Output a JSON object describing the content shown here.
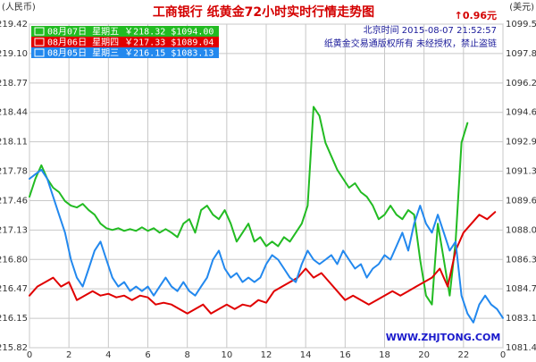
{
  "chart_data": {
    "type": "line",
    "title": "工商银行  纸黄金72小时实时行情走势图",
    "change_text": "↑0.96元",
    "left_unit": "(人民币)",
    "right_unit": "(美元)",
    "timestamp": "北京时间  2015-08-07  21:52:57",
    "copyright": "纸黄金交易通版权所有 未经授权，禁止盗链",
    "watermark": "WWW.ZHJTONG.COM",
    "x_ticks": [
      "0",
      "2",
      "4",
      "6",
      "8",
      "10",
      "12",
      "14",
      "16",
      "18",
      "20",
      "22",
      "0"
    ],
    "y_left_ticks": [
      "219.42",
      "219.10",
      "218.77",
      "218.44",
      "218.11",
      "217.78",
      "217.46",
      "217.13",
      "216.80",
      "216.47",
      "216.15",
      "215.82"
    ],
    "y_right_ticks": [
      "1099.53",
      "1097.89",
      "1096.25",
      "1094.61",
      "1092.96",
      "1091.32",
      "1089.68",
      "1088.03",
      "1086.39",
      "1084.75",
      "1083.10",
      "1081.46"
    ],
    "ylim": [
      215.82,
      219.42
    ],
    "xlim": [
      0,
      24
    ],
    "grid": true,
    "legend_placement": "top-left",
    "series": [
      {
        "name": "08月07日 星期五 ￥218.32 $1094.00",
        "color": "#22bb22",
        "points": [
          [
            0,
            217.5
          ],
          [
            0.3,
            217.7
          ],
          [
            0.6,
            217.85
          ],
          [
            0.9,
            217.7
          ],
          [
            1.2,
            217.6
          ],
          [
            1.5,
            217.55
          ],
          [
            1.8,
            217.45
          ],
          [
            2.1,
            217.4
          ],
          [
            2.4,
            217.38
          ],
          [
            2.7,
            217.42
          ],
          [
            3.0,
            217.35
          ],
          [
            3.3,
            217.3
          ],
          [
            3.6,
            217.2
          ],
          [
            3.9,
            217.15
          ],
          [
            4.2,
            217.13
          ],
          [
            4.5,
            217.15
          ],
          [
            4.8,
            217.12
          ],
          [
            5.1,
            217.14
          ],
          [
            5.4,
            217.12
          ],
          [
            5.7,
            217.16
          ],
          [
            6.0,
            217.12
          ],
          [
            6.3,
            217.15
          ],
          [
            6.6,
            217.1
          ],
          [
            6.9,
            217.14
          ],
          [
            7.2,
            217.1
          ],
          [
            7.5,
            217.05
          ],
          [
            7.8,
            217.2
          ],
          [
            8.1,
            217.25
          ],
          [
            8.4,
            217.1
          ],
          [
            8.7,
            217.35
          ],
          [
            9.0,
            217.4
          ],
          [
            9.3,
            217.3
          ],
          [
            9.6,
            217.25
          ],
          [
            9.9,
            217.35
          ],
          [
            10.2,
            217.2
          ],
          [
            10.5,
            217.0
          ],
          [
            10.8,
            217.1
          ],
          [
            11.1,
            217.2
          ],
          [
            11.4,
            217.0
          ],
          [
            11.7,
            217.05
          ],
          [
            12.0,
            216.95
          ],
          [
            12.3,
            217.0
          ],
          [
            12.6,
            216.95
          ],
          [
            12.9,
            217.05
          ],
          [
            13.2,
            217.0
          ],
          [
            13.5,
            217.1
          ],
          [
            13.8,
            217.2
          ],
          [
            14.1,
            217.4
          ],
          [
            14.4,
            218.5
          ],
          [
            14.7,
            218.4
          ],
          [
            15.0,
            218.1
          ],
          [
            15.3,
            217.95
          ],
          [
            15.6,
            217.8
          ],
          [
            15.9,
            217.7
          ],
          [
            16.2,
            217.6
          ],
          [
            16.5,
            217.65
          ],
          [
            16.8,
            217.55
          ],
          [
            17.1,
            217.5
          ],
          [
            17.4,
            217.4
          ],
          [
            17.7,
            217.25
          ],
          [
            18.0,
            217.3
          ],
          [
            18.3,
            217.4
          ],
          [
            18.6,
            217.3
          ],
          [
            18.9,
            217.25
          ],
          [
            19.2,
            217.35
          ],
          [
            19.5,
            217.3
          ],
          [
            19.8,
            216.8
          ],
          [
            20.1,
            216.4
          ],
          [
            20.4,
            216.3
          ],
          [
            20.7,
            217.2
          ],
          [
            21.0,
            216.8
          ],
          [
            21.3,
            216.4
          ],
          [
            21.6,
            217.0
          ],
          [
            21.9,
            218.1
          ],
          [
            22.2,
            218.32
          ]
        ]
      },
      {
        "name": "08月06日 星期四 ￥217.33 $1089.04",
        "color": "#e00000",
        "points": [
          [
            0,
            216.4
          ],
          [
            0.4,
            216.5
          ],
          [
            0.8,
            216.55
          ],
          [
            1.2,
            216.6
          ],
          [
            1.6,
            216.5
          ],
          [
            2.0,
            216.55
          ],
          [
            2.4,
            216.35
          ],
          [
            2.8,
            216.4
          ],
          [
            3.2,
            216.45
          ],
          [
            3.6,
            216.4
          ],
          [
            4.0,
            216.42
          ],
          [
            4.4,
            216.38
          ],
          [
            4.8,
            216.4
          ],
          [
            5.2,
            216.35
          ],
          [
            5.6,
            216.4
          ],
          [
            6.0,
            216.38
          ],
          [
            6.4,
            216.3
          ],
          [
            6.8,
            216.32
          ],
          [
            7.2,
            216.3
          ],
          [
            7.6,
            216.25
          ],
          [
            8.0,
            216.2
          ],
          [
            8.4,
            216.25
          ],
          [
            8.8,
            216.3
          ],
          [
            9.2,
            216.2
          ],
          [
            9.6,
            216.25
          ],
          [
            10.0,
            216.3
          ],
          [
            10.4,
            216.25
          ],
          [
            10.8,
            216.3
          ],
          [
            11.2,
            216.28
          ],
          [
            11.6,
            216.35
          ],
          [
            12.0,
            216.32
          ],
          [
            12.4,
            216.45
          ],
          [
            12.8,
            216.5
          ],
          [
            13.2,
            216.55
          ],
          [
            13.6,
            216.6
          ],
          [
            14.0,
            216.7
          ],
          [
            14.4,
            216.6
          ],
          [
            14.8,
            216.65
          ],
          [
            15.2,
            216.55
          ],
          [
            15.6,
            216.45
          ],
          [
            16.0,
            216.35
          ],
          [
            16.4,
            216.4
          ],
          [
            16.8,
            216.35
          ],
          [
            17.2,
            216.3
          ],
          [
            17.6,
            216.35
          ],
          [
            18.0,
            216.4
          ],
          [
            18.4,
            216.45
          ],
          [
            18.8,
            216.4
          ],
          [
            19.2,
            216.45
          ],
          [
            19.6,
            216.5
          ],
          [
            20.0,
            216.55
          ],
          [
            20.4,
            216.6
          ],
          [
            20.8,
            216.7
          ],
          [
            21.2,
            216.5
          ],
          [
            21.6,
            216.9
          ],
          [
            22.0,
            217.1
          ],
          [
            22.4,
            217.2
          ],
          [
            22.8,
            217.3
          ],
          [
            23.2,
            217.25
          ],
          [
            23.6,
            217.33
          ]
        ]
      },
      {
        "name": "08月05日 星期三 ￥216.15 $1083.13",
        "color": "#2288ee",
        "points": [
          [
            0,
            217.7
          ],
          [
            0.3,
            217.75
          ],
          [
            0.6,
            217.8
          ],
          [
            0.9,
            217.7
          ],
          [
            1.2,
            217.5
          ],
          [
            1.5,
            217.3
          ],
          [
            1.8,
            217.1
          ],
          [
            2.1,
            216.8
          ],
          [
            2.4,
            216.6
          ],
          [
            2.7,
            216.5
          ],
          [
            3.0,
            216.7
          ],
          [
            3.3,
            216.9
          ],
          [
            3.6,
            217.0
          ],
          [
            3.9,
            216.8
          ],
          [
            4.2,
            216.6
          ],
          [
            4.5,
            216.5
          ],
          [
            4.8,
            216.55
          ],
          [
            5.1,
            216.45
          ],
          [
            5.4,
            216.5
          ],
          [
            5.7,
            216.45
          ],
          [
            6.0,
            216.5
          ],
          [
            6.3,
            216.4
          ],
          [
            6.6,
            216.5
          ],
          [
            6.9,
            216.6
          ],
          [
            7.2,
            216.5
          ],
          [
            7.5,
            216.45
          ],
          [
            7.8,
            216.55
          ],
          [
            8.1,
            216.45
          ],
          [
            8.4,
            216.4
          ],
          [
            8.7,
            216.5
          ],
          [
            9.0,
            216.6
          ],
          [
            9.3,
            216.8
          ],
          [
            9.6,
            216.9
          ],
          [
            9.9,
            216.7
          ],
          [
            10.2,
            216.6
          ],
          [
            10.5,
            216.65
          ],
          [
            10.8,
            216.55
          ],
          [
            11.1,
            216.6
          ],
          [
            11.4,
            216.55
          ],
          [
            11.7,
            216.6
          ],
          [
            12.0,
            216.75
          ],
          [
            12.3,
            216.85
          ],
          [
            12.6,
            216.8
          ],
          [
            12.9,
            216.7
          ],
          [
            13.2,
            216.6
          ],
          [
            13.5,
            216.55
          ],
          [
            13.8,
            216.75
          ],
          [
            14.1,
            216.9
          ],
          [
            14.4,
            216.8
          ],
          [
            14.7,
            216.75
          ],
          [
            15.0,
            216.8
          ],
          [
            15.3,
            216.85
          ],
          [
            15.6,
            216.75
          ],
          [
            15.9,
            216.9
          ],
          [
            16.2,
            216.8
          ],
          [
            16.5,
            216.7
          ],
          [
            16.8,
            216.75
          ],
          [
            17.1,
            216.6
          ],
          [
            17.4,
            216.7
          ],
          [
            17.7,
            216.75
          ],
          [
            18.0,
            216.85
          ],
          [
            18.3,
            216.8
          ],
          [
            18.6,
            216.95
          ],
          [
            18.9,
            217.1
          ],
          [
            19.2,
            216.9
          ],
          [
            19.5,
            217.2
          ],
          [
            19.8,
            217.4
          ],
          [
            20.1,
            217.2
          ],
          [
            20.4,
            217.1
          ],
          [
            20.7,
            217.3
          ],
          [
            21.0,
            217.1
          ],
          [
            21.3,
            216.9
          ],
          [
            21.6,
            217.0
          ],
          [
            21.9,
            216.4
          ],
          [
            22.2,
            216.2
          ],
          [
            22.5,
            216.1
          ],
          [
            22.8,
            216.3
          ],
          [
            23.1,
            216.4
          ],
          [
            23.4,
            216.3
          ],
          [
            23.7,
            216.25
          ],
          [
            24.0,
            216.15
          ]
        ]
      }
    ]
  }
}
